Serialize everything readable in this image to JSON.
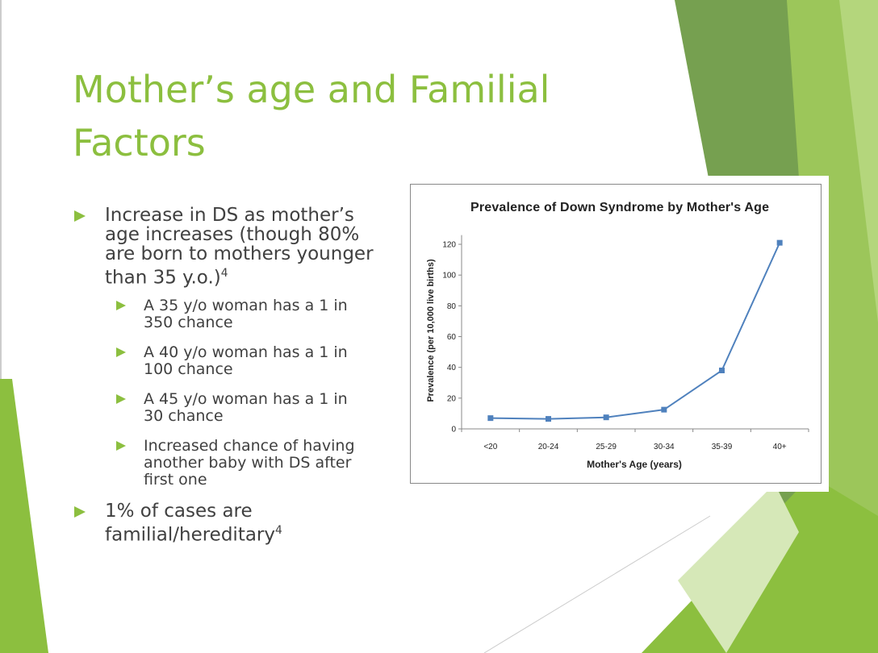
{
  "title": "Mother’s age and Familial Factors",
  "bullets": [
    {
      "text": "Increase in DS as mother’s age increases (though 80% are born to mothers younger than 35 y.o.)",
      "sup": "4",
      "sub_bullets": [
        "A 35 y/o woman has a 1 in 350 chance",
        "A 40 y/o woman has a 1 in 100 chance",
        "A 45 y/o woman has a 1 in 30 chance",
        "Increased chance of having another baby with DS after first one"
      ]
    },
    {
      "text": "1% of cases are familial/hereditary",
      "sup": "4"
    }
  ],
  "chart_data": {
    "type": "line",
    "title": "Prevalence of Down Syndrome by Mother's Age",
    "x_label": "Mother's Age (years)",
    "y_label": "Prevalence (per 10,000 live births)",
    "categories": [
      "<20",
      "20-24",
      "25-29",
      "30-34",
      "35-39",
      "40+"
    ],
    "values": [
      7,
      6.5,
      7.5,
      12.5,
      38,
      121
    ],
    "color": "#4f81bd",
    "ylim": [
      0,
      126
    ],
    "yticks": [
      0,
      20,
      40,
      60,
      80,
      100,
      120
    ]
  }
}
